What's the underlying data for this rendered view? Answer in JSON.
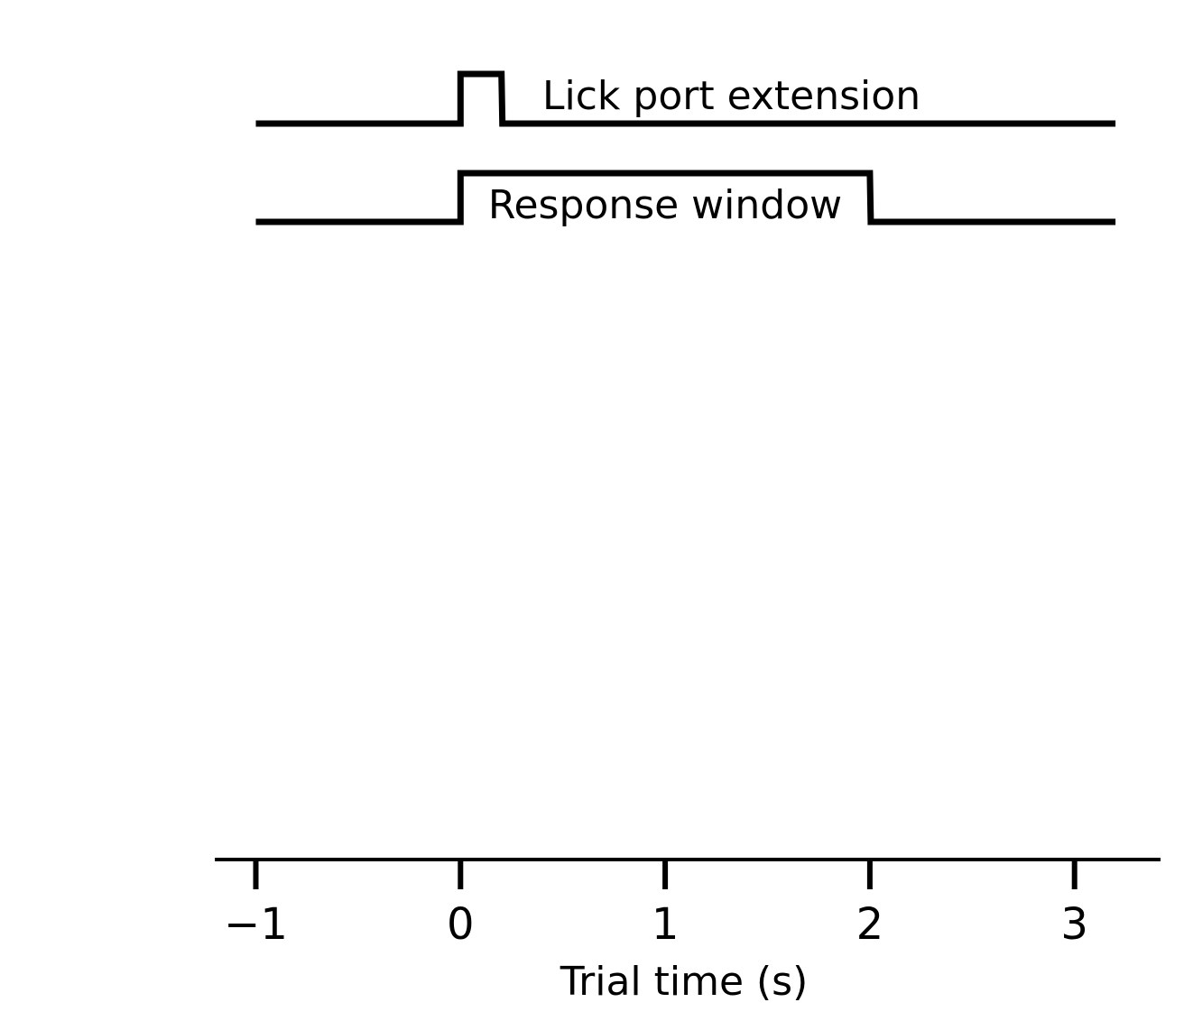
{
  "chart_data": {
    "type": "line",
    "title": "",
    "xlabel": "Trial time (s)",
    "ylabel": "",
    "xlim": [
      -1.2,
      3.42
    ],
    "xticks": [
      -1,
      0,
      1,
      2,
      3
    ],
    "xtick_labels": [
      "−1",
      "0",
      "1",
      "2",
      "3"
    ],
    "grid": false,
    "legend": "none",
    "color": "#000000",
    "series": [
      {
        "name": "Lick port extension",
        "x": [
          -1,
          0,
          0,
          0.2,
          0.2,
          3.2
        ],
        "y": [
          0,
          0,
          1,
          1,
          0,
          0
        ]
      },
      {
        "name": "Response window",
        "x": [
          -1,
          0,
          0,
          2,
          2,
          3.2
        ],
        "y": [
          0,
          0,
          1,
          1,
          0,
          0
        ]
      }
    ]
  }
}
